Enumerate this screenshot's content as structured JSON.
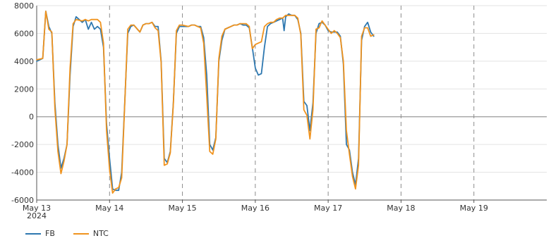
{
  "chart_data": {
    "type": "line",
    "title": "",
    "xlabel": "",
    "ylabel": "",
    "x_unit": "hour",
    "x_start": "2024-05-13T00:00",
    "ylim": [
      -6000,
      8000
    ],
    "xlim": [
      "2024-05-13T00:00",
      "2024-05-20T00:00"
    ],
    "y_ticks": [
      -6000,
      -4000,
      -2000,
      0,
      2000,
      4000,
      6000,
      8000
    ],
    "x_ticks": [
      {
        "at": 0,
        "label": "May 13",
        "sublabel": "2024"
      },
      {
        "at": 24,
        "label": "May 14"
      },
      {
        "at": 48,
        "label": "May 15"
      },
      {
        "at": 72,
        "label": "May 16"
      },
      {
        "at": 96,
        "label": "May 17"
      },
      {
        "at": 120,
        "label": "May 18"
      },
      {
        "at": 144,
        "label": "May 19"
      }
    ],
    "grid": true,
    "legend_position": "bottom-left",
    "series": [
      {
        "name": "FB",
        "color": "#2e78b0",
        "points": [
          [
            0,
            4000
          ],
          [
            2,
            4200
          ],
          [
            3,
            7600
          ],
          [
            4,
            6500
          ],
          [
            5,
            6000
          ],
          [
            6,
            1000
          ],
          [
            7,
            -2000
          ],
          [
            8,
            -3700
          ],
          [
            9,
            -3000
          ],
          [
            10,
            -2000
          ],
          [
            11,
            3000
          ],
          [
            12,
            6500
          ],
          [
            13,
            7200
          ],
          [
            15,
            6800
          ],
          [
            16,
            7000
          ],
          [
            17,
            6300
          ],
          [
            18,
            6800
          ],
          [
            19,
            6300
          ],
          [
            20,
            6500
          ],
          [
            21,
            6300
          ],
          [
            22,
            5000
          ],
          [
            23,
            -500
          ],
          [
            24,
            -3000
          ],
          [
            25,
            -5200
          ],
          [
            26,
            -5300
          ],
          [
            27,
            -5300
          ],
          [
            28,
            -4000
          ],
          [
            29,
            1000
          ],
          [
            30,
            6000
          ],
          [
            31,
            6500
          ],
          [
            32,
            6600
          ],
          [
            34,
            6100
          ],
          [
            35,
            6600
          ],
          [
            36,
            6700
          ],
          [
            37,
            6700
          ],
          [
            38,
            6800
          ],
          [
            39,
            6500
          ],
          [
            40,
            6500
          ],
          [
            41,
            4000
          ],
          [
            42,
            -3000
          ],
          [
            43,
            -3300
          ],
          [
            44,
            -2500
          ],
          [
            45,
            1000
          ],
          [
            46,
            6000
          ],
          [
            47,
            6500
          ],
          [
            48,
            6500
          ],
          [
            50,
            6500
          ],
          [
            51,
            6600
          ],
          [
            52,
            6600
          ],
          [
            53,
            6500
          ],
          [
            54,
            6500
          ],
          [
            55,
            5700
          ],
          [
            56,
            3000
          ],
          [
            57,
            -2000
          ],
          [
            58,
            -2400
          ],
          [
            59,
            -1500
          ],
          [
            60,
            4000
          ],
          [
            61,
            5500
          ],
          [
            62,
            6300
          ],
          [
            63,
            6400
          ],
          [
            64,
            6500
          ],
          [
            65,
            6600
          ],
          [
            66,
            6600
          ],
          [
            67,
            6700
          ],
          [
            68,
            6600
          ],
          [
            69,
            6600
          ],
          [
            70,
            6400
          ],
          [
            71,
            5000
          ],
          [
            72,
            3500
          ],
          [
            73,
            3000
          ],
          [
            74,
            3100
          ],
          [
            75,
            5000
          ],
          [
            76,
            6500
          ],
          [
            77,
            6700
          ],
          [
            78,
            6800
          ],
          [
            79,
            6900
          ],
          [
            80,
            7000
          ],
          [
            81,
            7100
          ],
          [
            81.5,
            6200
          ],
          [
            82,
            7200
          ],
          [
            83,
            7400
          ],
          [
            84,
            7300
          ],
          [
            85,
            7300
          ],
          [
            86,
            7000
          ],
          [
            87,
            6000
          ],
          [
            88,
            1100
          ],
          [
            89,
            800
          ],
          [
            90,
            -1000
          ],
          [
            91,
            1000
          ],
          [
            92,
            6000
          ],
          [
            93,
            6700
          ],
          [
            94,
            6800
          ],
          [
            95,
            6600
          ],
          [
            96,
            6200
          ],
          [
            97,
            6100
          ],
          [
            98,
            6100
          ],
          [
            99,
            6100
          ],
          [
            100,
            5800
          ],
          [
            101,
            3800
          ],
          [
            102,
            -2000
          ],
          [
            103,
            -2400
          ],
          [
            104,
            -4000
          ],
          [
            105,
            -4900
          ],
          [
            106,
            -3000
          ],
          [
            107,
            5500
          ],
          [
            108,
            6500
          ],
          [
            109,
            6800
          ],
          [
            110,
            6100
          ],
          [
            111,
            5800
          ]
        ]
      },
      {
        "name": "NTC",
        "color": "#f0931e",
        "points": [
          [
            0,
            4100
          ],
          [
            2,
            4200
          ],
          [
            3,
            7600
          ],
          [
            4,
            6300
          ],
          [
            5,
            6100
          ],
          [
            6,
            600
          ],
          [
            7,
            -2500
          ],
          [
            8,
            -4100
          ],
          [
            9,
            -3200
          ],
          [
            10,
            -2000
          ],
          [
            11,
            3500
          ],
          [
            12,
            6700
          ],
          [
            13,
            7000
          ],
          [
            15,
            6900
          ],
          [
            16,
            7000
          ],
          [
            17,
            6900
          ],
          [
            18,
            7000
          ],
          [
            19,
            7000
          ],
          [
            20,
            7000
          ],
          [
            21,
            6800
          ],
          [
            22,
            5300
          ],
          [
            23,
            -1000
          ],
          [
            24,
            -3800
          ],
          [
            25,
            -5500
          ],
          [
            26,
            -5200
          ],
          [
            27,
            -5100
          ],
          [
            28,
            -4400
          ],
          [
            29,
            900
          ],
          [
            30,
            6300
          ],
          [
            31,
            6600
          ],
          [
            32,
            6600
          ],
          [
            34,
            6100
          ],
          [
            35,
            6600
          ],
          [
            36,
            6700
          ],
          [
            37,
            6700
          ],
          [
            38,
            6800
          ],
          [
            39,
            6400
          ],
          [
            40,
            6200
          ],
          [
            41,
            3900
          ],
          [
            42,
            -3500
          ],
          [
            43,
            -3400
          ],
          [
            44,
            -2600
          ],
          [
            45,
            900
          ],
          [
            46,
            6200
          ],
          [
            47,
            6600
          ],
          [
            48,
            6600
          ],
          [
            50,
            6500
          ],
          [
            51,
            6600
          ],
          [
            52,
            6600
          ],
          [
            53,
            6500
          ],
          [
            54,
            6400
          ],
          [
            55,
            5300
          ],
          [
            56,
            1500
          ],
          [
            57,
            -2500
          ],
          [
            58,
            -2700
          ],
          [
            59,
            -1600
          ],
          [
            60,
            4200
          ],
          [
            61,
            5800
          ],
          [
            62,
            6300
          ],
          [
            63,
            6400
          ],
          [
            64,
            6500
          ],
          [
            65,
            6600
          ],
          [
            66,
            6600
          ],
          [
            67,
            6700
          ],
          [
            68,
            6700
          ],
          [
            69,
            6700
          ],
          [
            70,
            6500
          ],
          [
            71,
            4900
          ],
          [
            72,
            5200
          ],
          [
            73,
            5300
          ],
          [
            74,
            5400
          ],
          [
            75,
            6500
          ],
          [
            76,
            6700
          ],
          [
            77,
            6800
          ],
          [
            78,
            6800
          ],
          [
            79,
            7000
          ],
          [
            80,
            7100
          ],
          [
            81,
            7100
          ],
          [
            81.5,
            7200
          ],
          [
            82,
            7300
          ],
          [
            83,
            7300
          ],
          [
            84,
            7300
          ],
          [
            85,
            7300
          ],
          [
            86,
            7100
          ],
          [
            87,
            5900
          ],
          [
            88,
            500
          ],
          [
            89,
            100
          ],
          [
            90,
            -1600
          ],
          [
            91,
            500
          ],
          [
            92,
            6300
          ],
          [
            93,
            6400
          ],
          [
            94,
            6900
          ],
          [
            95,
            6600
          ],
          [
            96,
            6300
          ],
          [
            97,
            6000
          ],
          [
            98,
            6200
          ],
          [
            99,
            6000
          ],
          [
            100,
            5700
          ],
          [
            101,
            4000
          ],
          [
            102,
            -1000
          ],
          [
            103,
            -2700
          ],
          [
            104,
            -4300
          ],
          [
            105,
            -5200
          ],
          [
            106,
            -3500
          ],
          [
            107,
            5800
          ],
          [
            108,
            6400
          ],
          [
            109,
            6400
          ],
          [
            110,
            5800
          ],
          [
            111,
            5900
          ]
        ]
      }
    ]
  }
}
